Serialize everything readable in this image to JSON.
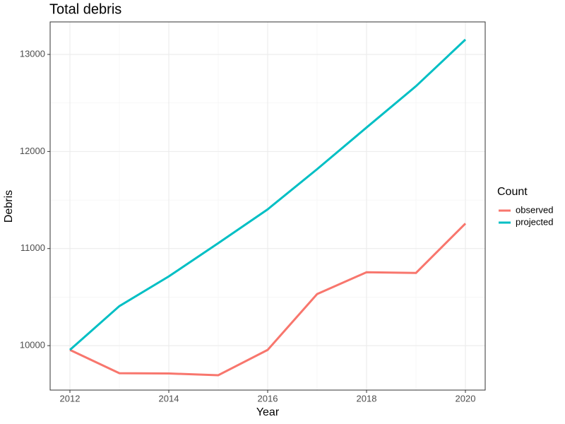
{
  "chart_data": {
    "type": "line",
    "title": "Total debris",
    "x_label": "Year",
    "y_label": "Debris",
    "x": [
      2012,
      2013,
      2014,
      2015,
      2016,
      2017,
      2018,
      2019,
      2020
    ],
    "series": [
      {
        "name": "observed",
        "color": "#F8766D",
        "values": [
          9956,
          9716,
          9713,
          9695,
          9956,
          10531,
          10756,
          10749,
          11258
        ]
      },
      {
        "name": "projected",
        "color": "#00BFC4",
        "values": [
          9956,
          10407,
          10713,
          11055,
          11404,
          11818,
          12247,
          12673,
          13153
        ]
      }
    ],
    "legend_title": "Count",
    "legend_position": "right",
    "xlim": [
      2011.6,
      2020.4
    ],
    "xticks": [
      2012,
      2014,
      2016,
      2018,
      2020
    ],
    "ylim": [
      9542,
      13335
    ],
    "yticks": [
      10000,
      11000,
      12000,
      13000
    ],
    "grid": true
  }
}
